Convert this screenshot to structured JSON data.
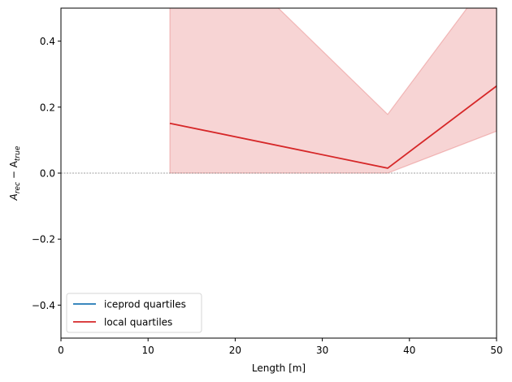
{
  "chart_data": {
    "type": "line",
    "xlabel": "Length [m]",
    "ylabel": "A_rec − A_true",
    "ylabel_main": "A",
    "ylabel_sub1": "rec",
    "ylabel_minus": " − A",
    "ylabel_sub2": "true",
    "xlim": [
      0,
      50
    ],
    "ylim": [
      -0.5,
      0.5
    ],
    "xticks": [
      0,
      10,
      20,
      30,
      40,
      50
    ],
    "yticks": [
      -0.4,
      -0.2,
      0.0,
      0.2,
      0.4
    ],
    "xtick_labels": [
      "0",
      "10",
      "20",
      "30",
      "40",
      "50"
    ],
    "ytick_labels": [
      "−0.4",
      "−0.2",
      "0.0",
      "0.2",
      "0.4"
    ],
    "reference_line_y": 0.0,
    "grid": false,
    "legend_position": "lower-left",
    "series": [
      {
        "name": "iceprod quartiles",
        "color": "#1f77b4",
        "x": [],
        "y": []
      },
      {
        "name": "local quartiles",
        "color": "#d62728",
        "x": [
          12.5,
          37.5,
          50
        ],
        "y": [
          0.151,
          0.015,
          0.264
        ],
        "band_lower": [
          0.0,
          0.0,
          0.127
        ],
        "band_upper": [
          0.82,
          0.178,
          0.62
        ]
      }
    ]
  }
}
